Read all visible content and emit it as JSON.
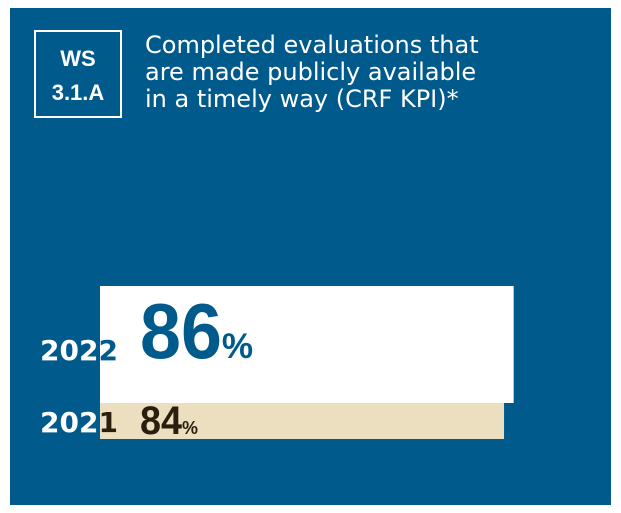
{
  "chart_data": {
    "type": "bar",
    "badge": [
      "WS",
      "3.1.A"
    ],
    "title": [
      "Completed evaluations that",
      "are made publicly available",
      "in a timely way (CRF KPI)*"
    ],
    "categories": [
      "2022",
      "2021"
    ],
    "values": [
      86,
      84
    ],
    "value_labels": [
      "86%",
      "84%"
    ],
    "colors": [
      "#ffffff",
      "#ebdfbf"
    ],
    "label_colors": [
      "#005a8b",
      "#2a1f0f"
    ],
    "xlim": [
      0,
      100
    ]
  }
}
